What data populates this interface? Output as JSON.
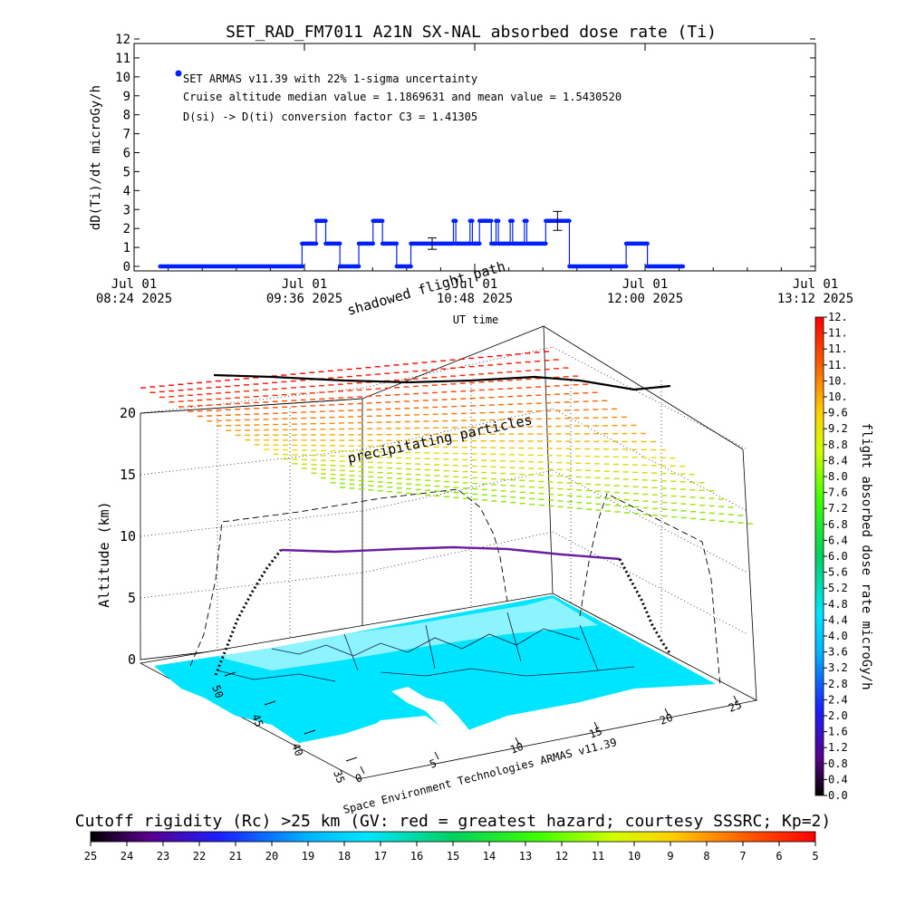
{
  "top_chart": {
    "title": "SET_RAD_FM7011   A21N SX-NAL absorbed dose rate (Ti)",
    "ylabel": "dD(Ti)/dt microGy/h",
    "xlabel": "UT time",
    "legend_label": "SET ARMAS v11.39 with 22% 1-sigma uncertainty",
    "annotations": [
      "Cruise altitude median value = 1.1869631 and mean value = 1.5430520",
      "D(si) -> D(ti) conversion factor C3 = 1.41305"
    ],
    "x_ticks": [
      {
        "date": "Jul 01",
        "time": "08:24 2025"
      },
      {
        "date": "Jul 01",
        "time": "09:36 2025"
      },
      {
        "date": "Jul 01",
        "time": "10:48 2025"
      },
      {
        "date": "Jul 01",
        "time": "12:00 2025"
      },
      {
        "date": "Jul 01",
        "time": "13:12 2025"
      }
    ],
    "y_ticks": [
      "0",
      "1",
      "2",
      "3",
      "4",
      "5",
      "6",
      "7",
      "8",
      "9",
      "10",
      "11",
      "12"
    ]
  },
  "chart_data": [
    {
      "type": "scatter",
      "title": "SET_RAD_FM7011   A21N SX-NAL absorbed dose rate (Ti)",
      "xlabel": "UT time",
      "ylabel": "dD(Ti)/dt microGy/h",
      "x_unit": "minutes UT",
      "xlim": [
        504,
        792
      ],
      "ylim": [
        0,
        12
      ],
      "series": [
        {
          "name": "SET ARMAS v11.39 with 22% 1-sigma uncertainty",
          "color": "#0020ff",
          "segments": [
            {
              "x": [
                515,
                575
              ],
              "y": 0
            },
            {
              "x": [
                575,
                581
              ],
              "y": 1.2
            },
            {
              "x": [
                581,
                585
              ],
              "y": 2.4
            },
            {
              "x": [
                585,
                591
              ],
              "y": 1.2
            },
            {
              "x": [
                591,
                599
              ],
              "y": 0
            },
            {
              "x": [
                599,
                605
              ],
              "y": 1.2
            },
            {
              "x": [
                605,
                609
              ],
              "y": 2.4
            },
            {
              "x": [
                609,
                615
              ],
              "y": 1.2
            },
            {
              "x": [
                615,
                621
              ],
              "y": 0
            },
            {
              "x": [
                621,
                639
              ],
              "y": 1.2
            },
            {
              "x": [
                639,
                640
              ],
              "y": 2.4
            },
            {
              "x": [
                640,
                646
              ],
              "y": 1.2
            },
            {
              "x": [
                646,
                647
              ],
              "y": 2.4
            },
            {
              "x": [
                647,
                650
              ],
              "y": 1.2
            },
            {
              "x": [
                650,
                655
              ],
              "y": 2.4
            },
            {
              "x": [
                655,
                657
              ],
              "y": 1.2
            },
            {
              "x": [
                657,
                658
              ],
              "y": 2.4
            },
            {
              "x": [
                658,
                663
              ],
              "y": 1.2
            },
            {
              "x": [
                663,
                664
              ],
              "y": 2.4
            },
            {
              "x": [
                664,
                669
              ],
              "y": 1.2
            },
            {
              "x": [
                669,
                670
              ],
              "y": 2.4
            },
            {
              "x": [
                670,
                678
              ],
              "y": 1.2
            },
            {
              "x": [
                678,
                688
              ],
              "y": 2.4
            },
            {
              "x": [
                688,
                712
              ],
              "y": 0
            },
            {
              "x": [
                712,
                721
              ],
              "y": 1.2
            },
            {
              "x": [
                721,
                736
              ],
              "y": 0
            }
          ],
          "error_bars": [
            {
              "x": 630,
              "y": 1.2,
              "low": 0.9,
              "high": 1.5
            },
            {
              "x": 683,
              "y": 2.4,
              "low": 1.9,
              "high": 2.9
            }
          ]
        }
      ]
    },
    {
      "type": "surface",
      "title": "",
      "ylabel": "Altitude (km)",
      "z_ticks": [
        "0",
        "5",
        "10",
        "15",
        "20"
      ],
      "lat_ticks": [
        "35",
        "40",
        "45",
        "50"
      ],
      "lon_ticks": [
        "0",
        "5",
        "10",
        "15",
        "20",
        "25"
      ],
      "labels": [
        "shadowed flight path",
        "precipitating particles"
      ],
      "credit": "Space Environment Technologies ARMAS v11.39"
    },
    {
      "type": "colorbar",
      "title": "flight absorbed dose rate microGy/h",
      "ticks": [
        "0.0",
        "0.4",
        "0.8",
        "1.2",
        "1.6",
        "2.0",
        "2.4",
        "2.8",
        "3.2",
        "3.6",
        "4.0",
        "4.4",
        "4.8",
        "5.2",
        "5.6",
        "6.0",
        "6.4",
        "6.8",
        "7.2",
        "7.6",
        "8.0",
        "8.4",
        "8.8",
        "9.2",
        "9.6",
        "10.",
        "10.",
        "11.",
        "11.",
        "11.",
        "12."
      ]
    },
    {
      "type": "colorbar",
      "title": "Cutoff rigidity (Rc) >25 km (GV: red = greatest hazard; courtesy SSSRC; Kp=2)",
      "ticks": [
        "25",
        "24",
        "23",
        "22",
        "21",
        "20",
        "19",
        "18",
        "17",
        "16",
        "15",
        "14",
        "13",
        "12",
        "11",
        "10",
        "9",
        "8",
        "7",
        "6",
        "5"
      ]
    }
  ],
  "colors": {
    "data_blue": "#0020ff",
    "land": "#ffffff",
    "sea": "#00e5ff",
    "plane": "#6a1fa0"
  }
}
